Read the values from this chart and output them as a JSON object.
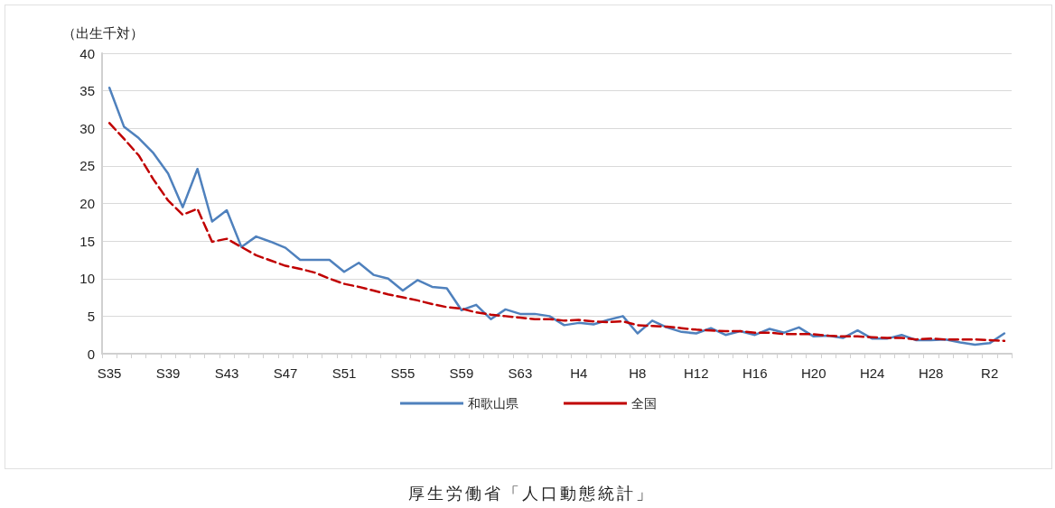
{
  "chart_data": {
    "type": "line",
    "ylabel": "（出生千対）",
    "annotations": [
      "厚生労働省「人口動態統計」"
    ],
    "categories": [
      "S35",
      null,
      null,
      null,
      "S39",
      null,
      null,
      null,
      "S43",
      null,
      null,
      null,
      "S47",
      null,
      null,
      null,
      "S51",
      null,
      null,
      null,
      "S55",
      null,
      null,
      null,
      "S59",
      null,
      null,
      null,
      "S63",
      null,
      null,
      null,
      "H4",
      null,
      null,
      null,
      "H8",
      null,
      null,
      null,
      "H12",
      null,
      null,
      null,
      "H16",
      null,
      null,
      null,
      "H20",
      null,
      null,
      null,
      "H24",
      null,
      null,
      null,
      "H28",
      null,
      null,
      null,
      "R2",
      null
    ],
    "series": [
      {
        "name": "和歌山県",
        "color": "#4f81bd",
        "line_style": "solid",
        "values": [
          35.4,
          30.2,
          28.7,
          26.7,
          24.0,
          19.5,
          24.6,
          17.6,
          19.1,
          14.2,
          15.6,
          14.9,
          14.1,
          12.5,
          12.5,
          12.5,
          10.9,
          12.1,
          10.5,
          10.0,
          8.4,
          9.8,
          8.9,
          8.7,
          5.8,
          6.5,
          4.6,
          5.9,
          5.3,
          5.3,
          5.0,
          3.8,
          4.1,
          3.9,
          4.5,
          5.0,
          2.7,
          4.4,
          3.5,
          2.9,
          2.7,
          3.4,
          2.5,
          3.0,
          2.5,
          3.3,
          2.8,
          3.5,
          2.3,
          2.4,
          2.1,
          3.1,
          2.0,
          2.0,
          2.5,
          1.8,
          1.8,
          1.9,
          1.5,
          1.2,
          1.4,
          2.7
        ]
      },
      {
        "name": "全国",
        "color": "#c00000",
        "line_style": "dashed",
        "values": [
          30.7,
          28.6,
          26.4,
          23.2,
          20.4,
          18.5,
          19.3,
          14.9,
          15.3,
          14.2,
          13.1,
          12.4,
          11.7,
          11.3,
          10.8,
          10.0,
          9.3,
          8.9,
          8.4,
          7.9,
          7.5,
          7.1,
          6.6,
          6.2,
          6.0,
          5.5,
          5.2,
          5.0,
          4.8,
          4.6,
          4.6,
          4.4,
          4.5,
          4.3,
          4.2,
          4.3,
          3.8,
          3.7,
          3.6,
          3.4,
          3.2,
          3.1,
          3.0,
          3.0,
          2.8,
          2.8,
          2.6,
          2.6,
          2.6,
          2.4,
          2.3,
          2.3,
          2.2,
          2.1,
          2.1,
          1.9,
          2.0,
          1.9,
          1.9,
          1.9,
          1.8,
          1.7
        ]
      }
    ],
    "ylim": [
      0,
      40
    ],
    "yticks": [
      0,
      5,
      10,
      15,
      20,
      25,
      30,
      35,
      40
    ],
    "grid": "y",
    "legend": "bottom",
    "marker": "none"
  }
}
